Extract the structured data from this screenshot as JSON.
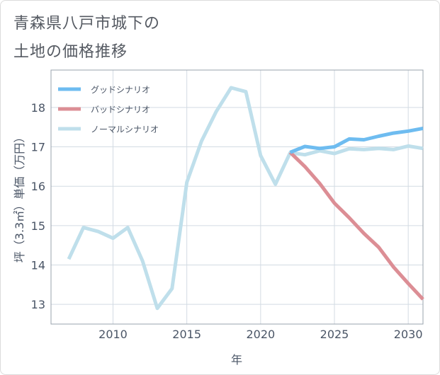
{
  "chart_data": {
    "type": "line",
    "title_line1": "青森県八戸市城下の",
    "title_line2": "土地の価格推移",
    "xlabel": "年",
    "ylabel": "坪（3.3㎡）単価（万円）",
    "xlim": [
      2005.8,
      2031.0
    ],
    "ylim": [
      12.5,
      18.95
    ],
    "xticks": [
      2010,
      2015,
      2020,
      2025,
      2030
    ],
    "yticks": [
      13,
      14,
      15,
      16,
      17,
      18
    ],
    "legend_position": "top-left",
    "grid": true,
    "series": [
      {
        "name": "グッドシナリオ",
        "color": "#6ebcf0",
        "x": [
          2022,
          2023,
          2024,
          2025,
          2026,
          2027,
          2028,
          2029,
          2030,
          2031
        ],
        "values": [
          16.86,
          17.01,
          16.96,
          17.0,
          17.2,
          17.18,
          17.27,
          17.35,
          17.4,
          17.47
        ]
      },
      {
        "name": "バッドシナリオ",
        "color": "#dc8e95",
        "x": [
          2022,
          2023,
          2024,
          2025,
          2026,
          2027,
          2028,
          2029,
          2030,
          2031
        ],
        "values": [
          16.86,
          16.5,
          16.07,
          15.57,
          15.2,
          14.8,
          14.45,
          13.95,
          13.53,
          13.13
        ]
      },
      {
        "name": "ノーマルシナリオ",
        "color": "#bfdfeb",
        "x": [
          2007,
          2008,
          2009,
          2010,
          2011,
          2012,
          2013,
          2014,
          2015,
          2016,
          2017,
          2018,
          2019,
          2020,
          2021,
          2022,
          2023,
          2024,
          2025,
          2026,
          2027,
          2028,
          2029,
          2030,
          2031
        ],
        "values": [
          14.15,
          14.95,
          14.85,
          14.68,
          14.95,
          14.1,
          12.9,
          13.4,
          16.1,
          17.15,
          17.9,
          18.5,
          18.4,
          16.78,
          16.05,
          16.85,
          16.8,
          16.9,
          16.83,
          16.95,
          16.93,
          16.96,
          16.93,
          17.02,
          16.96
        ]
      }
    ]
  }
}
